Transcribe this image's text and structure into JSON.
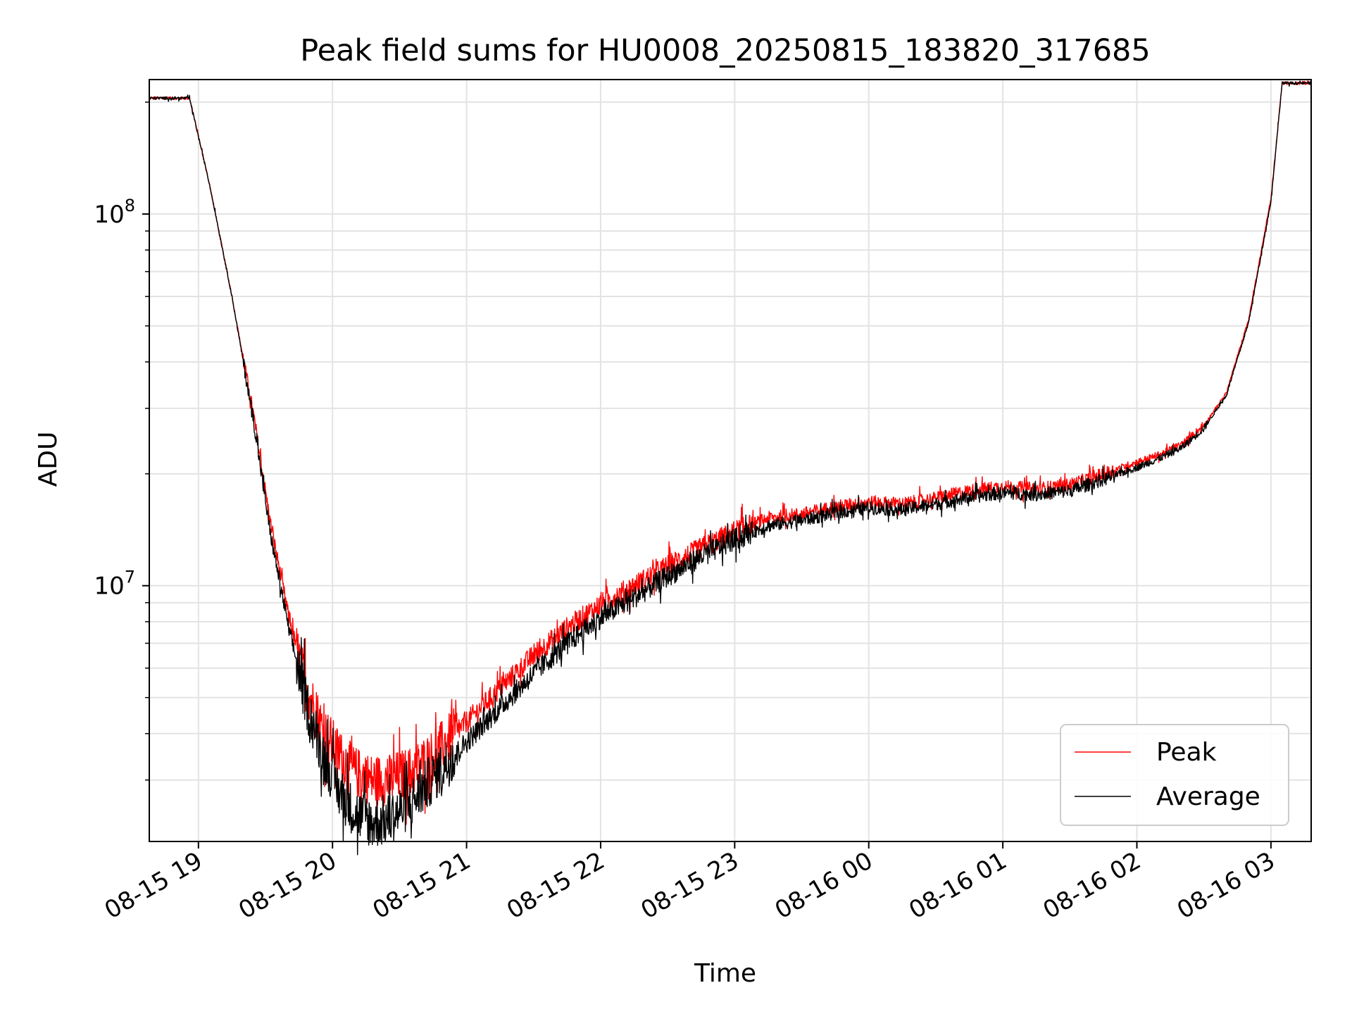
{
  "chart_data": {
    "type": "line",
    "title": "Peak field sums for HU0008_20250815_183820_317685",
    "xlabel": "Time",
    "ylabel": "ADU",
    "yscale": "log",
    "grid": true,
    "legend_position": "lower right",
    "x_ticks": [
      "08-15 19",
      "08-15 20",
      "08-15 21",
      "08-15 22",
      "08-15 23",
      "08-16 00",
      "08-16 01",
      "08-16 02",
      "08-16 03"
    ],
    "y_ticks": [
      {
        "value": 10000000,
        "base": "10",
        "exp": "7"
      },
      {
        "value": 100000000,
        "base": "10",
        "exp": "8"
      }
    ],
    "xlim": [
      "2025-08-15 18:38",
      "2025-08-16 03:18"
    ],
    "ylim": [
      2050000,
      230000000
    ],
    "series": [
      {
        "name": "Peak",
        "color": "#ff0000",
        "x": [
          "2025-08-15 18:38",
          "2025-08-15 18:56",
          "2025-08-15 19:05",
          "2025-08-15 19:15",
          "2025-08-15 19:25",
          "2025-08-15 19:32",
          "2025-08-15 19:40",
          "2025-08-15 19:48",
          "2025-08-15 19:55",
          "2025-08-15 20:03",
          "2025-08-15 20:10",
          "2025-08-15 20:18",
          "2025-08-15 20:25",
          "2025-08-15 20:35",
          "2025-08-15 20:45",
          "2025-08-15 21:00",
          "2025-08-15 21:15",
          "2025-08-15 21:30",
          "2025-08-15 21:45",
          "2025-08-15 22:00",
          "2025-08-15 22:15",
          "2025-08-15 22:30",
          "2025-08-15 22:45",
          "2025-08-15 23:00",
          "2025-08-15 23:15",
          "2025-08-15 23:30",
          "2025-08-15 23:45",
          "2025-08-16 00:00",
          "2025-08-16 00:15",
          "2025-08-16 00:30",
          "2025-08-16 00:45",
          "2025-08-16 01:00",
          "2025-08-16 01:15",
          "2025-08-16 01:30",
          "2025-08-16 01:45",
          "2025-08-16 02:00",
          "2025-08-16 02:10",
          "2025-08-16 02:20",
          "2025-08-16 02:30",
          "2025-08-16 02:40",
          "2025-08-16 02:50",
          "2025-08-16 03:00",
          "2025-08-16 03:05",
          "2025-08-16 03:18"
        ],
        "y": [
          205000000,
          205000000,
          120000000,
          60000000,
          28000000,
          15000000,
          8500000,
          5400000,
          4200000,
          3500000,
          3150000,
          3000000,
          3000000,
          3150000,
          3500000,
          4300000,
          5300000,
          6500000,
          7700000,
          8900000,
          10000000,
          11300000,
          12600000,
          14000000,
          15200000,
          15600000,
          16300000,
          16800000,
          16600000,
          17200000,
          18000000,
          18500000,
          18200000,
          18700000,
          20000000,
          21500000,
          22500000,
          24000000,
          27000000,
          33000000,
          52000000,
          110000000,
          225000000,
          225000000
        ]
      },
      {
        "name": "Average",
        "color": "#000000",
        "x": [
          "2025-08-15 18:38",
          "2025-08-15 18:56",
          "2025-08-15 19:05",
          "2025-08-15 19:15",
          "2025-08-15 19:25",
          "2025-08-15 19:32",
          "2025-08-15 19:40",
          "2025-08-15 19:48",
          "2025-08-15 19:55",
          "2025-08-15 20:03",
          "2025-08-15 20:10",
          "2025-08-15 20:18",
          "2025-08-15 20:25",
          "2025-08-15 20:35",
          "2025-08-15 20:45",
          "2025-08-15 21:00",
          "2025-08-15 21:15",
          "2025-08-15 21:30",
          "2025-08-15 21:45",
          "2025-08-15 22:00",
          "2025-08-15 22:15",
          "2025-08-15 22:30",
          "2025-08-15 22:45",
          "2025-08-15 23:00",
          "2025-08-15 23:15",
          "2025-08-15 23:30",
          "2025-08-15 23:45",
          "2025-08-16 00:00",
          "2025-08-16 00:15",
          "2025-08-16 00:30",
          "2025-08-16 00:45",
          "2025-08-16 01:00",
          "2025-08-16 01:15",
          "2025-08-16 01:30",
          "2025-08-16 01:45",
          "2025-08-16 02:00",
          "2025-08-16 02:10",
          "2025-08-16 02:20",
          "2025-08-16 02:30",
          "2025-08-16 02:40",
          "2025-08-16 02:50",
          "2025-08-16 03:00",
          "2025-08-16 03:05",
          "2025-08-16 03:18"
        ],
        "y": [
          205000000,
          205000000,
          120000000,
          60000000,
          27000000,
          14000000,
          7900000,
          4900000,
          3600000,
          2800000,
          2450000,
          2300000,
          2350000,
          2600000,
          3050000,
          3800000,
          4700000,
          5800000,
          7000000,
          8200000,
          9300000,
          10600000,
          12000000,
          13300000,
          14500000,
          15000000,
          15700000,
          16200000,
          16000000,
          16600000,
          17300000,
          17800000,
          17600000,
          18000000,
          19300000,
          20800000,
          22000000,
          23500000,
          26500000,
          32500000,
          51000000,
          108000000,
          225000000,
          225000000
        ]
      }
    ]
  }
}
